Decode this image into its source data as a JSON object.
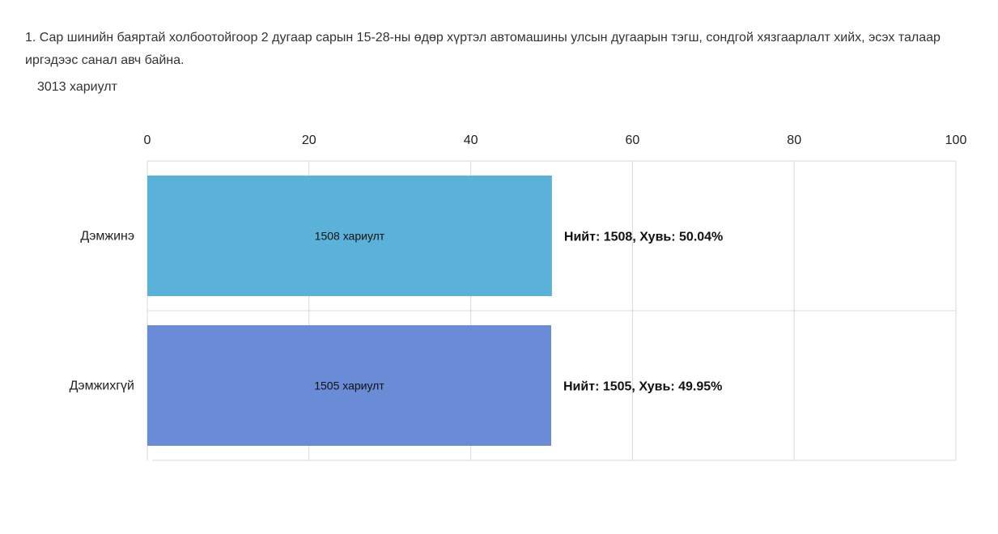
{
  "question": {
    "text": "1. Сар шинийн баяртай холбоотойгоор 2 дугаар сарын 15-28-ны өдөр хүртэл автомашины улсын дугаарын тэгш, сондгой хязгаарлалт хийх, эсэх талаар иргэдээс санал авч байна.",
    "responses_count": "3013 хариулт"
  },
  "chart_data": {
    "type": "bar",
    "orientation": "horizontal",
    "categories": [
      "Дэмжинэ",
      "Дэмжихгүй"
    ],
    "values": [
      50.04,
      49.95
    ],
    "bar_labels": [
      "1508 хариулт",
      "1505 хариулт"
    ],
    "total_labels": [
      "Нийт: 1508, Хувь: 50.04%",
      "Нийт: 1505, Хувь: 49.95%"
    ],
    "colors": [
      "#5BB2D8",
      "#6A8BD6"
    ],
    "xlim": [
      0,
      100
    ],
    "xticks": [
      "0",
      "20",
      "40",
      "60",
      "80",
      "100"
    ],
    "xtick_values": [
      0,
      20,
      40,
      60,
      80,
      100
    ],
    "x_axis_position": "top",
    "grid": true
  }
}
